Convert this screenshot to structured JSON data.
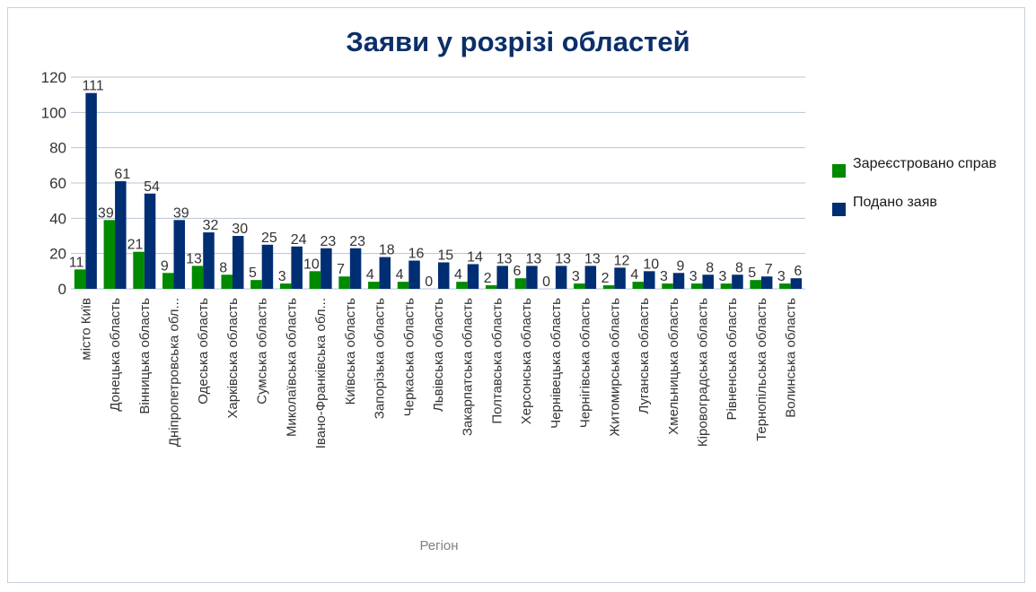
{
  "chart_data": {
    "type": "bar",
    "title": "Заяви у розрізі областей",
    "xlabel": "Регіон",
    "ylabel": "",
    "ylim": [
      0,
      120
    ],
    "yticks": [
      0,
      20,
      40,
      60,
      80,
      100,
      120
    ],
    "grid": true,
    "legend_position": "right",
    "categories": [
      "місто Київ",
      "Донецька область",
      "Вінницька область",
      "Дніпропетровська обл...",
      "Одеська область",
      "Харківська область",
      "Сумська область",
      "Миколаївська область",
      "Івано-Франківська обл...",
      "Київська область",
      "Запорізька область",
      "Черкаська область",
      "Львівська область",
      "Закарпатська область",
      "Полтавська область",
      "Херсонська область",
      "Чернівецька область",
      "Чернігівська область",
      "Житомирська область",
      "Луганська область",
      "Хмельницька область",
      "Кіровоградська область",
      "Рівненська область",
      "Тернопільська область",
      "Волинська область"
    ],
    "series": [
      {
        "name": "Зареєстровано справ",
        "color": "#008a00",
        "values": [
          11,
          39,
          21,
          9,
          13,
          8,
          5,
          3,
          10,
          7,
          4,
          4,
          0,
          4,
          2,
          6,
          0,
          3,
          2,
          4,
          3,
          3,
          3,
          5,
          3
        ]
      },
      {
        "name": "Подано заяв",
        "color": "#002e73",
        "values": [
          111,
          61,
          54,
          39,
          32,
          30,
          25,
          24,
          23,
          23,
          18,
          16,
          15,
          14,
          13,
          13,
          13,
          13,
          12,
          10,
          9,
          8,
          8,
          7,
          6
        ]
      }
    ]
  },
  "colors": {
    "title": "#0c2f6a",
    "grid": "#b7c4d4",
    "axis_text": "#333333",
    "xlabel": "#808080"
  }
}
